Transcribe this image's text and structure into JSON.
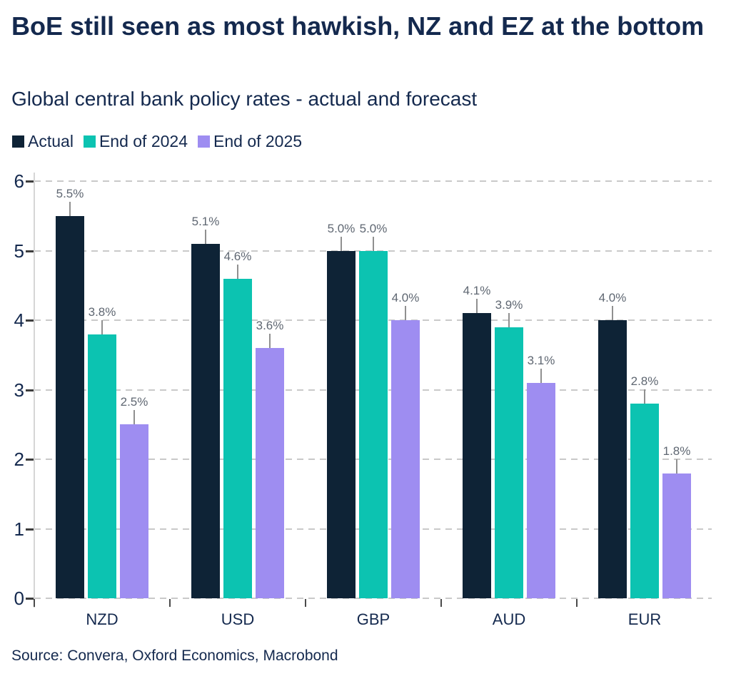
{
  "header": {
    "title": "BoE still seen as most hawkish, NZ and EZ at the bottom",
    "subtitle": "Global central bank policy rates - actual and forecast"
  },
  "source": "Source: Convera, Oxford Economics, Macrobond",
  "colors": {
    "text_navy": "#14294e",
    "actual_bar": "#0e2336",
    "end_2024_bar": "#0cc3b1",
    "end_2025_bar": "#9e8df1",
    "data_label": "#5f6772",
    "gridline": "#c9c9c9"
  },
  "chart_data": {
    "type": "bar",
    "title": "BoE still seen as most hawkish, NZ and EZ at the bottom",
    "subtitle": "Global central bank policy rates - actual and forecast",
    "categories": [
      "NZD",
      "USD",
      "GBP",
      "AUD",
      "EUR"
    ],
    "series": [
      {
        "name": "Actual",
        "color": "#0e2336",
        "values": [
          5.5,
          5.1,
          5.0,
          4.1,
          4.0
        ],
        "labels": [
          "5.5%",
          "5.1%",
          "5.0%",
          "4.1%",
          "4.0%"
        ]
      },
      {
        "name": "End of 2024",
        "color": "#0cc3b1",
        "values": [
          3.8,
          4.6,
          5.0,
          3.9,
          2.8
        ],
        "labels": [
          "3.8%",
          "4.6%",
          "5.0%",
          "3.9%",
          "2.8%"
        ]
      },
      {
        "name": "End of 2025",
        "color": "#9e8df1",
        "values": [
          2.5,
          3.6,
          4.0,
          3.1,
          1.8
        ],
        "labels": [
          "2.5%",
          "3.6%",
          "4.0%",
          "3.1%",
          "1.8%"
        ]
      }
    ],
    "ylim": [
      0,
      6
    ],
    "yticks": [
      0,
      1,
      2,
      3,
      4,
      5,
      6
    ],
    "grid": "horizontal-dashed",
    "legend_position": "top-left",
    "data_labels": "above-bars-with-connector-line"
  }
}
